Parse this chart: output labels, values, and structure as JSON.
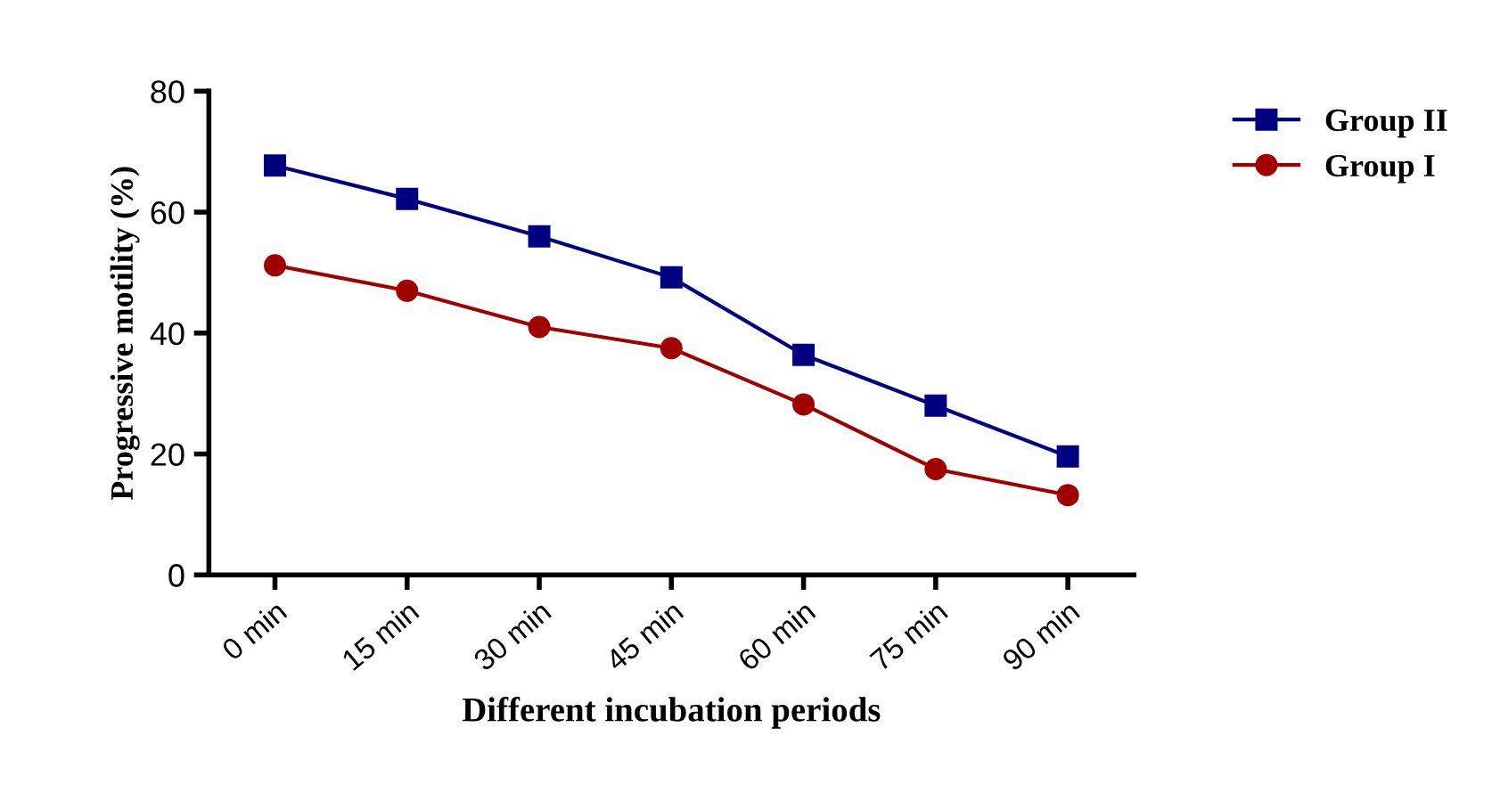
{
  "chart_data": {
    "type": "line",
    "xlabel": "Different incubation periods",
    "ylabel": "Progressive motility (%)",
    "categories": [
      "0 min",
      "15 min",
      "30 min",
      "45 min",
      "60 min",
      "75 min",
      "90 min"
    ],
    "series": [
      {
        "name": "Group II",
        "color": "#000080",
        "marker": "square",
        "values": [
          67.7,
          62.2,
          56,
          49.2,
          36.4,
          28,
          19.6
        ]
      },
      {
        "name": "Group I",
        "color": "#a00000",
        "marker": "circle",
        "values": [
          51.2,
          47,
          41,
          37.5,
          28.2,
          17.5,
          13.2
        ]
      }
    ],
    "ylim": [
      0,
      80
    ],
    "yticks": [
      0,
      20,
      40,
      60,
      80
    ],
    "grid": false,
    "legend": "top right",
    "line_style": "solid"
  }
}
